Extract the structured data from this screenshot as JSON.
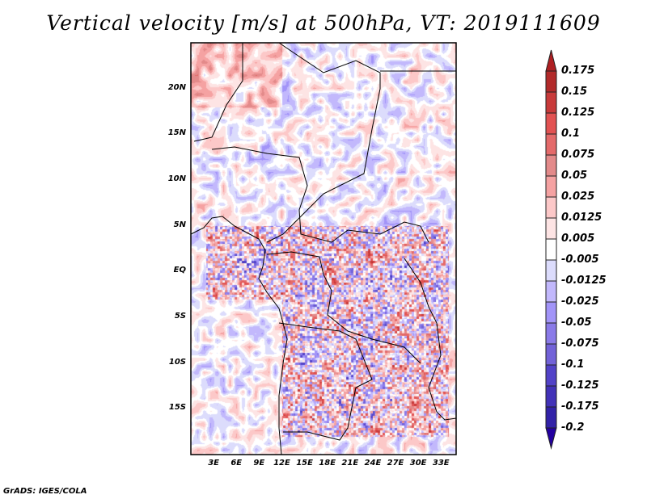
{
  "title": "Vertical velocity [m/s] at 500hPa, VT: 2019111609",
  "map": {
    "lon_range": [
      0,
      35
    ],
    "lat_range": [
      -20,
      25
    ],
    "lat_labels": [
      {
        "lat": 20,
        "label": "20N"
      },
      {
        "lat": 15,
        "label": "15N"
      },
      {
        "lat": 10,
        "label": "10N"
      },
      {
        "lat": 5,
        "label": "5N"
      },
      {
        "lat": 0,
        "label": "EQ"
      },
      {
        "lat": -5,
        "label": "5S"
      },
      {
        "lat": -10,
        "label": "10S"
      },
      {
        "lat": -15,
        "label": "15S"
      }
    ],
    "lon_labels": [
      {
        "lon": 3,
        "label": "3E"
      },
      {
        "lon": 6,
        "label": "6E"
      },
      {
        "lon": 9,
        "label": "9E"
      },
      {
        "lon": 12,
        "label": "12E"
      },
      {
        "lon": 15,
        "label": "15E"
      },
      {
        "lon": 18,
        "label": "18E"
      },
      {
        "lon": 21,
        "label": "21E"
      },
      {
        "lon": 24,
        "label": "24E"
      },
      {
        "lon": 27,
        "label": "27E"
      },
      {
        "lon": 30,
        "label": "30E"
      },
      {
        "lon": 33,
        "label": "33E"
      }
    ]
  },
  "colorbar": {
    "labels": [
      "0.175",
      "0.15",
      "0.125",
      "0.1",
      "0.075",
      "0.05",
      "0.025",
      "0.0125",
      "0.005",
      "-0.005",
      "-0.0125",
      "-0.025",
      "-0.05",
      "-0.075",
      "-0.1",
      "-0.125",
      "-0.175",
      "-0.2"
    ],
    "top_arrow_color": "#ae1f22",
    "bottom_arrow_color": "#2300a0",
    "colors": [
      "#b22a2a",
      "#c83a3a",
      "#e25252",
      "#e46a6a",
      "#e38a8a",
      "#f5a2a2",
      "#fcc8c8",
      "#fde4e4",
      "#ffffff",
      "#dcdcfc",
      "#c2b8fc",
      "#a294f8",
      "#8a7ae8",
      "#7262d8",
      "#5242c8",
      "#4232b8",
      "#3222a8"
    ]
  },
  "credit": "GrADS: IGES/COLA"
}
